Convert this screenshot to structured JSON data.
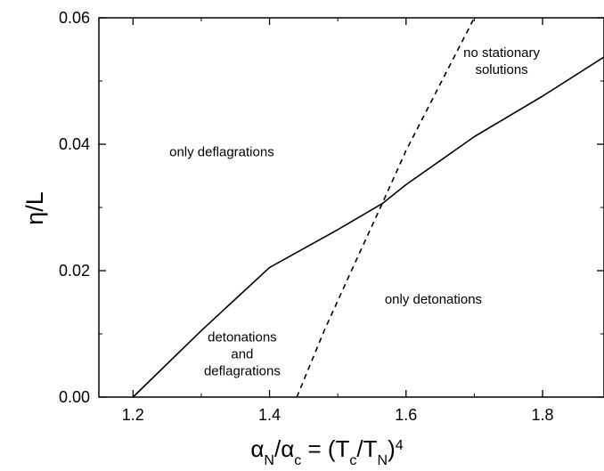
{
  "chart_data": {
    "type": "line",
    "xlabel": {
      "alpha": "α",
      "sub_n": "N",
      "slash": "/",
      "alpha2": "α",
      "sub_c": "c",
      "eq": " = (T",
      "sub_c2": "c",
      "slash2": "/T",
      "sub_n2": "N",
      "close": ")",
      "sup": "4"
    },
    "ylabel": "η/L",
    "xlim": [
      1.15,
      1.89
    ],
    "ylim": [
      0.0,
      0.06
    ],
    "x_ticks": [
      "1.2",
      "1.4",
      "1.6",
      "1.8"
    ],
    "y_ticks": [
      "0.00",
      "0.02",
      "0.04",
      "0.06"
    ],
    "series": [
      {
        "style": "solid",
        "color": "#000000",
        "points": [
          [
            1.2,
            0.0
          ],
          [
            1.3,
            0.0105
          ],
          [
            1.4,
            0.0205
          ],
          [
            1.5,
            0.0265
          ],
          [
            1.565,
            0.0306
          ],
          [
            1.6,
            0.0336
          ],
          [
            1.7,
            0.0412
          ],
          [
            1.8,
            0.0476
          ],
          [
            1.89,
            0.0538
          ]
        ]
      },
      {
        "style": "dashed",
        "color": "#000000",
        "points": [
          [
            1.44,
            0.0
          ],
          [
            1.48,
            0.0105
          ],
          [
            1.52,
            0.02
          ],
          [
            1.565,
            0.0306
          ],
          [
            1.6,
            0.039
          ],
          [
            1.65,
            0.0495
          ],
          [
            1.7,
            0.06
          ]
        ]
      }
    ],
    "annotations": [
      {
        "lines": [
          "only deflagrations"
        ],
        "x": 1.33,
        "y": 0.0388
      },
      {
        "lines": [
          "no stationary",
          "solutions"
        ],
        "x": 1.74,
        "y": 0.0532
      },
      {
        "lines": [
          "only detonations"
        ],
        "x": 1.64,
        "y": 0.0155
      },
      {
        "lines": [
          "detonations",
          "and",
          "deflagrations"
        ],
        "x": 1.36,
        "y": 0.0068
      }
    ],
    "grid": false,
    "legend": "none"
  }
}
